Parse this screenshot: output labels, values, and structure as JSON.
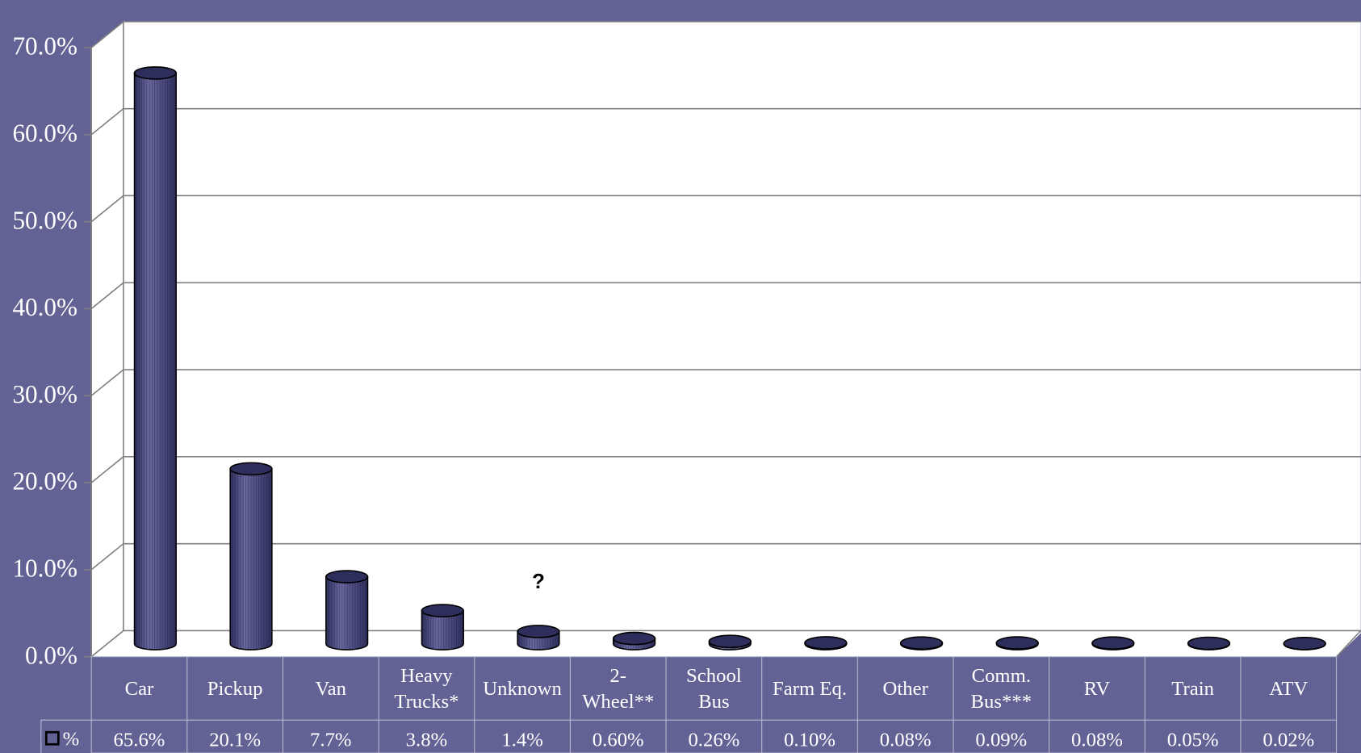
{
  "chart_data": {
    "type": "cylinder",
    "categories": [
      "Car",
      "Pickup",
      "Van",
      "Heavy Trucks*",
      "Unknown",
      "2-Wheel**",
      "School Bus",
      "Farm Eq.",
      "Other",
      "Comm. Bus***",
      "RV",
      "Train",
      "ATV"
    ],
    "series": [
      {
        "name": "%",
        "color": "#4d4d85",
        "values": [
          65.6,
          20.1,
          7.7,
          3.8,
          1.4,
          0.6,
          0.26,
          0.1,
          0.08,
          0.09,
          0.08,
          0.05,
          0.02
        ],
        "value_labels": [
          "65.6%",
          "20.1%",
          "7.7%",
          "3.8%",
          "1.4%",
          "0.60%",
          "0.26%",
          "0.10%",
          "0.08%",
          "0.09%",
          "0.08%",
          "0.05%",
          "0.02%"
        ]
      }
    ],
    "ylim": [
      0,
      70
    ],
    "yticks": [
      {
        "value": 0,
        "label": "0.0%"
      },
      {
        "value": 10,
        "label": "10.0%"
      },
      {
        "value": 20,
        "label": "20.0%"
      },
      {
        "value": 30,
        "label": "30.0%"
      },
      {
        "value": 40,
        "label": "40.0%"
      },
      {
        "value": 50,
        "label": "50.0%"
      },
      {
        "value": 60,
        "label": "60.0%"
      },
      {
        "value": 70,
        "label": "70.0%"
      }
    ],
    "grid": true,
    "annotations": [
      {
        "text": "?",
        "category": 4
      }
    ]
  }
}
